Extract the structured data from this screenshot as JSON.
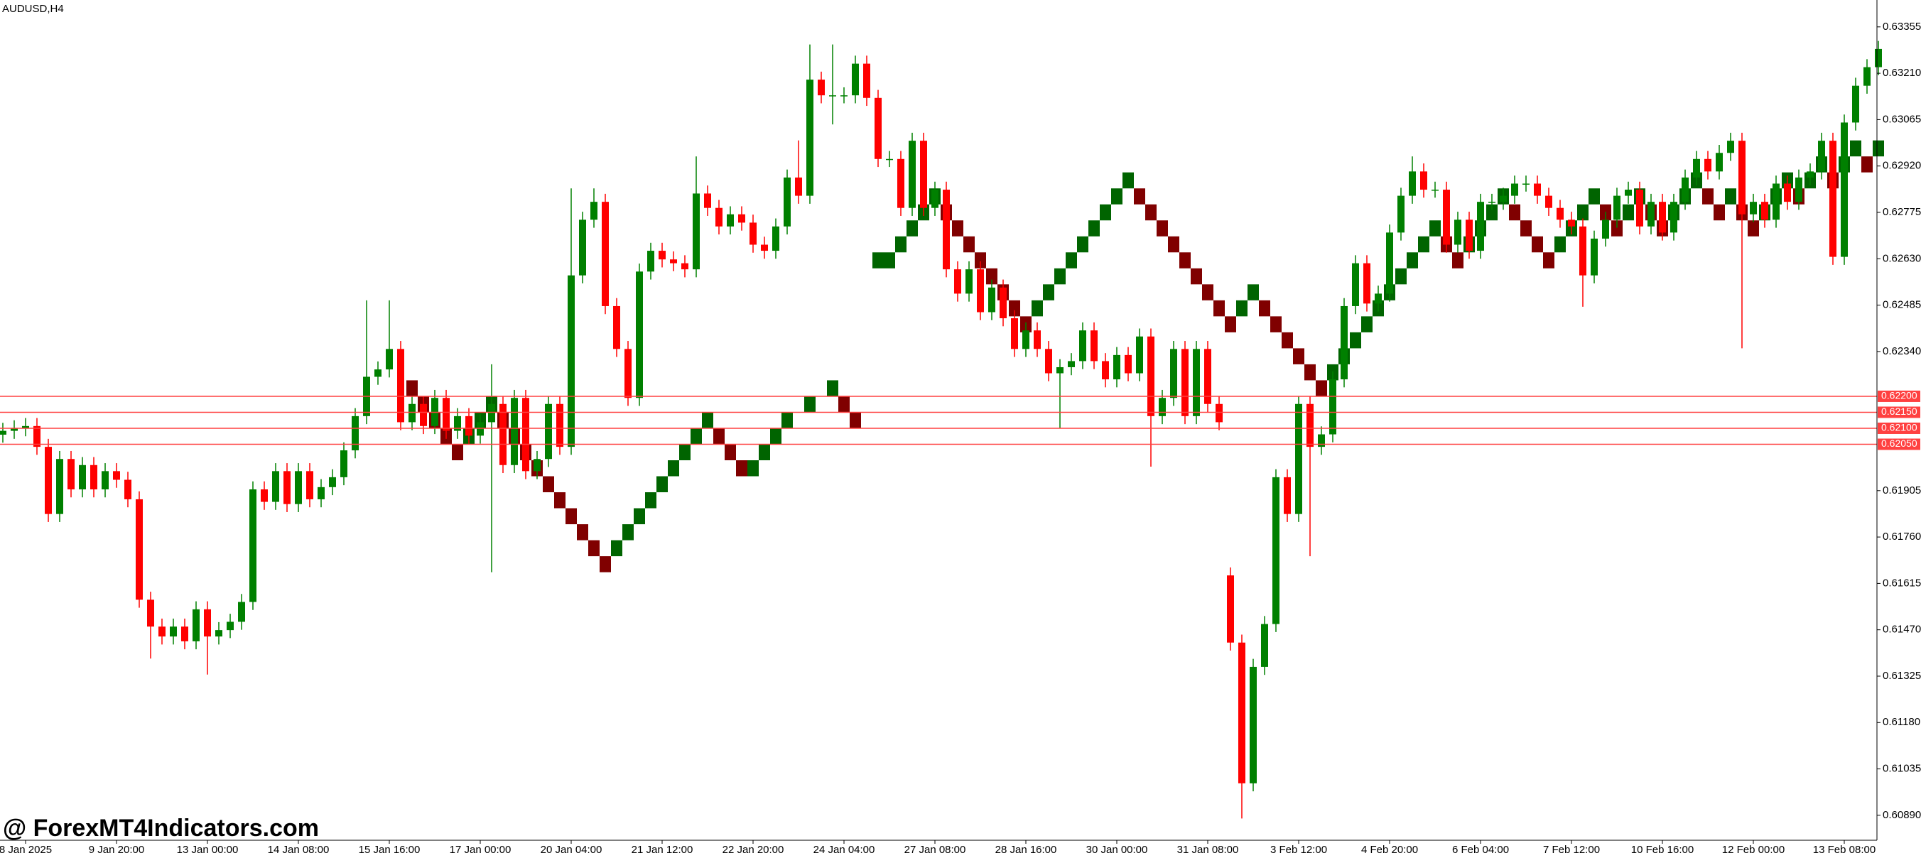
{
  "chart_data": {
    "type": "candlestick",
    "title": "AUDUSD,H4",
    "watermark": "@ ForexMT4Indicators.com",
    "up_color": "#008000",
    "down_color": "#ff0000",
    "brick_up_color": "#006400",
    "brick_down_color": "#800000",
    "level_color": "#ff4040",
    "ylim": [
      0.60812,
      0.63439
    ],
    "yticks": [
      {
        "value": 0.63355,
        "label": "0.63355"
      },
      {
        "value": 0.6321,
        "label": "0.63210"
      },
      {
        "value": 0.63065,
        "label": "0.63065"
      },
      {
        "value": 0.6292,
        "label": "0.62920"
      },
      {
        "value": 0.62775,
        "label": "0.62775"
      },
      {
        "value": 0.6263,
        "label": "0.62630"
      },
      {
        "value": 0.62485,
        "label": "0.62485"
      },
      {
        "value": 0.6234,
        "label": "0.62340"
      },
      {
        "value": 0.61905,
        "label": "0.61905"
      },
      {
        "value": 0.6176,
        "label": "0.61760"
      },
      {
        "value": 0.61615,
        "label": "0.61615"
      },
      {
        "value": 0.6147,
        "label": "0.61470"
      },
      {
        "value": 0.61325,
        "label": "0.61325"
      },
      {
        "value": 0.6118,
        "label": "0.61180"
      },
      {
        "value": 0.61035,
        "label": "0.61035"
      },
      {
        "value": 0.6089,
        "label": "0.60890"
      }
    ],
    "levels": [
      {
        "value": 0.622,
        "label": "0.62200"
      },
      {
        "value": 0.6215,
        "label": "0.62150"
      },
      {
        "value": 0.621,
        "label": "0.62100"
      },
      {
        "value": 0.6205,
        "label": "0.62050"
      }
    ],
    "categories": [
      null,
      null,
      "8 Jan 2025",
      null,
      null,
      null,
      null,
      null,
      null,
      null,
      "9 Jan 20:00",
      null,
      null,
      null,
      null,
      null,
      null,
      null,
      "13 Jan 00:00",
      null,
      null,
      null,
      null,
      null,
      null,
      null,
      "14 Jan 08:00",
      null,
      null,
      null,
      null,
      null,
      null,
      null,
      "15 Jan 16:00",
      null,
      null,
      null,
      null,
      null,
      null,
      null,
      "17 Jan 00:00",
      null,
      null,
      null,
      null,
      null,
      null,
      null,
      "20 Jan 04:00",
      null,
      null,
      null,
      null,
      null,
      null,
      null,
      "21 Jan 12:00",
      null,
      null,
      null,
      null,
      null,
      null,
      null,
      "22 Jan 20:00",
      null,
      null,
      null,
      null,
      null,
      null,
      null,
      "24 Jan 04:00",
      null,
      null,
      null,
      null,
      null,
      null,
      null,
      "27 Jan 08:00",
      null,
      null,
      null,
      null,
      null,
      null,
      null,
      "28 Jan 16:00",
      null,
      null,
      null,
      null,
      null,
      null,
      null,
      "30 Jan 00:00",
      null,
      null,
      null,
      null,
      null,
      null,
      null,
      "31 Jan 08:00",
      null,
      null,
      null,
      null,
      null,
      null,
      null,
      "3 Feb 12:00",
      null,
      null,
      null,
      null,
      null,
      null,
      null,
      "4 Feb 20:00",
      null,
      null,
      null,
      null,
      null,
      null,
      null,
      "6 Feb 04:00",
      null,
      null,
      null,
      null,
      null,
      null,
      null,
      "7 Feb 12:00",
      null,
      null,
      null,
      null,
      null,
      null,
      null,
      "10 Feb 16:00",
      null,
      null,
      null,
      null,
      null,
      null,
      null,
      "12 Feb 00:00",
      null,
      null,
      null,
      null,
      null,
      null,
      null,
      "13 Feb 08:00",
      null,
      null,
      null
    ],
    "open": [
      0.6208,
      0.62092,
      0.621,
      0.62107,
      0.62042,
      0.61832,
      0.62004,
      0.61909,
      0.61985,
      0.61909,
      0.61966,
      0.61939,
      0.61878,
      0.61564,
      0.6148,
      0.61449,
      0.6148,
      0.61434,
      0.61534,
      0.61449,
      0.61469,
      0.61495,
      0.61557,
      0.61909,
      0.6187,
      0.61966,
      0.61863,
      0.61966,
      0.61878,
      0.61916,
      0.61947,
      0.62031,
      0.62138,
      0.62261,
      0.62284,
      0.62348,
      0.62119,
      0.62176,
      0.62107,
      0.62195,
      0.62092,
      0.62138,
      0.62077,
      0.62119,
      0.62176,
      0.61985,
      0.62195,
      0.61966,
      0.62004,
      0.62176,
      0.62042,
      0.62578,
      0.62752,
      0.62808,
      0.62482,
      0.62348,
      0.62195,
      0.6259,
      0.62655,
      0.62628,
      0.62616,
      0.62597,
      0.62834,
      0.62789,
      0.62731,
      0.62769,
      0.62743,
      0.62674,
      0.62655,
      0.62731,
      0.62884,
      0.62827,
      0.6319,
      0.63141,
      0.63141,
      0.63141,
      0.6324,
      0.63133,
      0.62942,
      0.62942,
      0.62789,
      0.62999,
      0.62789,
      0.62846,
      0.62597,
      0.62521,
      0.62597,
      0.62463,
      0.6254,
      0.62444,
      0.62348,
      0.62406,
      0.62348,
      0.62272,
      0.62291,
      0.6231,
      0.62406,
      0.6231,
      0.62253,
      0.62329,
      0.62272,
      0.62387,
      0.62138,
      0.62195,
      0.62348,
      0.62138,
      0.62348,
      0.62176,
      0.6164,
      0.6143,
      0.6099,
      0.61354,
      0.61488,
      0.61947,
      0.61832,
      0.62176,
      0.62042,
      0.62081,
      0.62253,
      0.62482,
      0.62616,
      0.6249,
      0.62521,
      0.62712,
      0.62827,
      0.62903,
      0.62846,
      0.62846,
      0.62674,
      0.62752,
      0.62655,
      0.62808,
      0.62808,
      0.62827,
      0.62865,
      0.62865,
      0.62827,
      0.62789,
      0.62752,
      0.62731,
      0.62578,
      0.62693,
      0.62752,
      0.62827,
      0.62846,
      0.62731,
      0.62808,
      0.62712,
      0.62808,
      0.62884,
      0.62942,
      0.62903,
      0.62961,
      0.62999,
      0.62769,
      0.62808,
      0.62752,
      0.62865,
      0.62808,
      0.62884,
      0.62903,
      0.62999,
      0.62636,
      0.63056,
      0.63171,
      0.63229
    ],
    "high": [
      0.62117,
      0.62125,
      0.62132,
      0.62132,
      0.62067,
      0.62029,
      0.62029,
      0.6201,
      0.6201,
      0.61991,
      0.61991,
      0.61964,
      0.61903,
      0.61589,
      0.61505,
      0.61505,
      0.61505,
      0.61559,
      0.61559,
      0.61494,
      0.6152,
      0.61582,
      0.61934,
      0.61934,
      0.61991,
      0.61991,
      0.61991,
      0.61991,
      0.61941,
      0.61972,
      0.62056,
      0.62163,
      0.625,
      0.62309,
      0.625,
      0.62373,
      0.62201,
      0.62201,
      0.6222,
      0.6222,
      0.62163,
      0.62163,
      0.62144,
      0.623,
      0.62201,
      0.6222,
      0.6222,
      0.62029,
      0.62201,
      0.62201,
      0.6285,
      0.62777,
      0.6285,
      0.62833,
      0.62507,
      0.62373,
      0.62615,
      0.6268,
      0.6268,
      0.62653,
      0.62641,
      0.6295,
      0.62859,
      0.62814,
      0.62794,
      0.62794,
      0.62768,
      0.62699,
      0.62756,
      0.62909,
      0.63,
      0.633,
      0.63215,
      0.633,
      0.63166,
      0.63265,
      0.63265,
      0.63158,
      0.62967,
      0.62967,
      0.63024,
      0.63024,
      0.62871,
      0.62871,
      0.62622,
      0.62622,
      0.62622,
      0.62565,
      0.62565,
      0.62469,
      0.62431,
      0.62431,
      0.62373,
      0.62316,
      0.62335,
      0.62431,
      0.62431,
      0.62335,
      0.62354,
      0.62354,
      0.62412,
      0.62412,
      0.6222,
      0.62373,
      0.62373,
      0.62373,
      0.62373,
      0.62201,
      0.61665,
      0.61455,
      0.61379,
      0.61513,
      0.61972,
      0.61972,
      0.62201,
      0.62201,
      0.62106,
      0.62278,
      0.62507,
      0.62641,
      0.62641,
      0.62546,
      0.62737,
      0.62852,
      0.6295,
      0.62928,
      0.62871,
      0.62871,
      0.62777,
      0.62777,
      0.62833,
      0.62833,
      0.62852,
      0.6289,
      0.6289,
      0.6289,
      0.62852,
      0.62814,
      0.62777,
      0.62756,
      0.62718,
      0.62777,
      0.62852,
      0.62871,
      0.62871,
      0.62833,
      0.62833,
      0.62833,
      0.62909,
      0.62967,
      0.62967,
      0.62986,
      0.63024,
      0.63024,
      0.62833,
      0.62833,
      0.6289,
      0.6289,
      0.62909,
      0.62928,
      0.63024,
      0.63024,
      0.63081,
      0.63196,
      0.63254,
      0.63311
    ],
    "low": [
      0.62055,
      0.62067,
      0.62075,
      0.62017,
      0.61807,
      0.61807,
      0.61884,
      0.61884,
      0.61884,
      0.61884,
      0.61914,
      0.61853,
      0.61539,
      0.6138,
      0.61424,
      0.61424,
      0.61409,
      0.61409,
      0.6133,
      0.61424,
      0.61444,
      0.6147,
      0.61532,
      0.61845,
      0.61845,
      0.61838,
      0.61838,
      0.61853,
      0.61853,
      0.61891,
      0.61922,
      0.62006,
      0.62113,
      0.62236,
      0.62259,
      0.62094,
      0.62094,
      0.62082,
      0.62082,
      0.62067,
      0.62067,
      0.62052,
      0.62052,
      0.6165,
      0.6196,
      0.6196,
      0.61941,
      0.61941,
      0.61979,
      0.62017,
      0.62017,
      0.62553,
      0.62727,
      0.62457,
      0.62323,
      0.6217,
      0.6217,
      0.62565,
      0.62603,
      0.62591,
      0.62572,
      0.62572,
      0.62764,
      0.62706,
      0.62706,
      0.62718,
      0.62649,
      0.6263,
      0.6263,
      0.62706,
      0.62802,
      0.62802,
      0.63116,
      0.6305,
      0.63116,
      0.63116,
      0.63108,
      0.62917,
      0.62917,
      0.62764,
      0.62764,
      0.62764,
      0.62764,
      0.62572,
      0.62496,
      0.62496,
      0.62438,
      0.62438,
      0.62419,
      0.62323,
      0.62323,
      0.62323,
      0.62247,
      0.621,
      0.62266,
      0.62285,
      0.62285,
      0.62228,
      0.62228,
      0.62247,
      0.62247,
      0.6198,
      0.62113,
      0.6217,
      0.62113,
      0.62113,
      0.62151,
      0.62094,
      0.61405,
      0.6088,
      0.60965,
      0.61329,
      0.61463,
      0.61807,
      0.61807,
      0.617,
      0.62017,
      0.62056,
      0.62228,
      0.62457,
      0.62465,
      0.62465,
      0.62496,
      0.62687,
      0.62802,
      0.62821,
      0.62821,
      0.62649,
      0.62649,
      0.6263,
      0.6263,
      0.62783,
      0.62783,
      0.62802,
      0.6284,
      0.62802,
      0.62764,
      0.62727,
      0.62706,
      0.6248,
      0.62553,
      0.62668,
      0.62727,
      0.62802,
      0.62706,
      0.62706,
      0.62687,
      0.62687,
      0.62783,
      0.62859,
      0.62878,
      0.62878,
      0.62936,
      0.6235,
      0.62744,
      0.62727,
      0.62727,
      0.62783,
      0.62783,
      0.62859,
      0.62878,
      0.62611,
      0.62611,
      0.63031,
      0.63146,
      0.63204
    ],
    "close": [
      0.62092,
      0.621,
      0.62107,
      0.62042,
      0.61832,
      0.62004,
      0.61909,
      0.61985,
      0.61909,
      0.61966,
      0.61939,
      0.61878,
      0.61564,
      0.6148,
      0.61449,
      0.6148,
      0.61434,
      0.61534,
      0.61449,
      0.61469,
      0.61495,
      0.61557,
      0.61909,
      0.6187,
      0.61966,
      0.61863,
      0.61966,
      0.61878,
      0.61916,
      0.61947,
      0.62031,
      0.62138,
      0.62261,
      0.62284,
      0.62348,
      0.62119,
      0.62176,
      0.62107,
      0.62195,
      0.62092,
      0.62138,
      0.62077,
      0.62119,
      0.62176,
      0.61985,
      0.62195,
      0.61966,
      0.62004,
      0.62176,
      0.62042,
      0.62578,
      0.62752,
      0.62808,
      0.62482,
      0.62348,
      0.62195,
      0.6259,
      0.62655,
      0.62628,
      0.62616,
      0.62597,
      0.62834,
      0.62789,
      0.62731,
      0.62769,
      0.62743,
      0.62674,
      0.62655,
      0.62731,
      0.62884,
      0.62827,
      0.6319,
      0.63141,
      0.63141,
      0.63141,
      0.6324,
      0.63133,
      0.62942,
      0.62942,
      0.62789,
      0.62999,
      0.62789,
      0.62846,
      0.62597,
      0.62521,
      0.62597,
      0.62463,
      0.6254,
      0.62444,
      0.62348,
      0.62406,
      0.62348,
      0.62272,
      0.62291,
      0.6231,
      0.62406,
      0.6231,
      0.62253,
      0.62329,
      0.62272,
      0.62387,
      0.62138,
      0.62195,
      0.62348,
      0.62138,
      0.62348,
      0.62176,
      0.62119,
      0.6143,
      0.6099,
      0.61354,
      0.61488,
      0.61947,
      0.61832,
      0.62176,
      0.62042,
      0.62081,
      0.62253,
      0.62482,
      0.62616,
      0.6249,
      0.62521,
      0.62712,
      0.62827,
      0.62903,
      0.62846,
      0.62846,
      0.62674,
      0.62752,
      0.62655,
      0.62808,
      0.62808,
      0.62827,
      0.62865,
      0.62865,
      0.62827,
      0.62789,
      0.62752,
      0.62731,
      0.62578,
      0.62693,
      0.62752,
      0.62827,
      0.62846,
      0.62731,
      0.62808,
      0.62712,
      0.62808,
      0.62884,
      0.62942,
      0.62903,
      0.62961,
      0.62999,
      0.62769,
      0.62808,
      0.62752,
      0.62865,
      0.62808,
      0.62884,
      0.62903,
      0.62999,
      0.62636,
      0.63056,
      0.63171,
      0.63229,
      0.63286
    ],
    "bricks": {
      "index": [
        36,
        37,
        38,
        39,
        40,
        41,
        42,
        43,
        44,
        45,
        46,
        47,
        48,
        49,
        50,
        51,
        52,
        53,
        54,
        55,
        56,
        57,
        58,
        59,
        60,
        61,
        62,
        63,
        64,
        65,
        66,
        67,
        68,
        69,
        71,
        73,
        74,
        75,
        77,
        78,
        79,
        80,
        81,
        82,
        83,
        84,
        85,
        86,
        87,
        88,
        89,
        90,
        91,
        92,
        93,
        94,
        95,
        96,
        97,
        98,
        99,
        100,
        101,
        102,
        103,
        104,
        105,
        106,
        107,
        108,
        109,
        110,
        111,
        112,
        113,
        114,
        115,
        116,
        117,
        118,
        119,
        120,
        121,
        122,
        123,
        124,
        125,
        126,
        127,
        128,
        129,
        130,
        131,
        132,
        133,
        134,
        135,
        136,
        137,
        138,
        139,
        140,
        141,
        142,
        143,
        144,
        145,
        146,
        147,
        148,
        149,
        150,
        151,
        152,
        153,
        154,
        155,
        156,
        157,
        158,
        159,
        160,
        161,
        162,
        163,
        164,
        165
      ],
      "open": [
        0.6225,
        0.622,
        0.6215,
        0.621,
        0.6205,
        0.6205,
        0.621,
        0.6215,
        0.6215,
        0.621,
        0.6205,
        0.62,
        0.6195,
        0.619,
        0.6185,
        0.618,
        0.6175,
        0.617,
        0.617,
        0.6175,
        0.618,
        0.6185,
        0.619,
        0.6195,
        0.62,
        0.6205,
        0.621,
        0.621,
        0.6205,
        0.62,
        0.6195,
        0.62,
        0.6205,
        0.621,
        0.6215,
        0.622,
        0.622,
        0.6215,
        0.626,
        0.626,
        0.6265,
        0.627,
        0.6275,
        0.628,
        0.628,
        0.6275,
        0.627,
        0.6265,
        0.626,
        0.6255,
        0.625,
        0.6245,
        0.6245,
        0.625,
        0.6255,
        0.626,
        0.6265,
        0.627,
        0.6275,
        0.628,
        0.6285,
        0.6285,
        0.628,
        0.6275,
        0.627,
        0.6265,
        0.626,
        0.6255,
        0.625,
        0.6245,
        0.6245,
        0.625,
        0.625,
        0.6245,
        0.624,
        0.6235,
        0.623,
        0.6225,
        0.6225,
        0.623,
        0.6235,
        0.624,
        0.6245,
        0.625,
        0.6255,
        0.626,
        0.6265,
        0.627,
        0.627,
        0.6265,
        0.6265,
        0.627,
        0.6275,
        0.628,
        0.628,
        0.6275,
        0.627,
        0.6265,
        0.6265,
        0.627,
        0.6275,
        0.628,
        0.628,
        0.6275,
        0.6275,
        0.628,
        0.628,
        0.6275,
        0.6275,
        0.628,
        0.6285,
        0.6285,
        0.628,
        0.628,
        0.628,
        0.6275,
        0.6275,
        0.628,
        0.6285,
        0.6285,
        0.6285,
        0.629,
        0.629,
        0.629,
        0.6295,
        0.6295,
        0.6295
      ],
      "close": [
        0.622,
        0.6215,
        0.621,
        0.6205,
        0.62,
        0.621,
        0.6215,
        0.622,
        0.621,
        0.6205,
        0.62,
        0.6195,
        0.619,
        0.6185,
        0.618,
        0.6175,
        0.617,
        0.6165,
        0.6175,
        0.618,
        0.6185,
        0.619,
        0.6195,
        0.62,
        0.6205,
        0.621,
        0.6215,
        0.6205,
        0.62,
        0.6195,
        0.62,
        0.6205,
        0.621,
        0.6215,
        0.622,
        0.6225,
        0.6215,
        0.621,
        0.6265,
        0.6265,
        0.627,
        0.6275,
        0.628,
        0.6285,
        0.6275,
        0.627,
        0.6265,
        0.626,
        0.6255,
        0.625,
        0.6245,
        0.624,
        0.625,
        0.6255,
        0.626,
        0.6265,
        0.627,
        0.6275,
        0.628,
        0.6285,
        0.629,
        0.628,
        0.6275,
        0.627,
        0.6265,
        0.626,
        0.6255,
        0.625,
        0.6245,
        0.624,
        0.625,
        0.6255,
        0.6245,
        0.624,
        0.6235,
        0.623,
        0.6225,
        0.622,
        0.623,
        0.6235,
        0.624,
        0.6245,
        0.625,
        0.6255,
        0.626,
        0.6265,
        0.627,
        0.6275,
        0.6265,
        0.626,
        0.627,
        0.6275,
        0.628,
        0.6285,
        0.6275,
        0.627,
        0.6265,
        0.626,
        0.627,
        0.6275,
        0.628,
        0.6285,
        0.6275,
        0.627,
        0.628,
        0.6285,
        0.6275,
        0.627,
        0.628,
        0.6285,
        0.629,
        0.628,
        0.6275,
        0.6285,
        0.6275,
        0.627,
        0.628,
        0.6285,
        0.629,
        0.628,
        0.629,
        0.6295,
        0.6285,
        0.6295,
        0.63,
        0.629,
        0.63
      ]
    }
  }
}
